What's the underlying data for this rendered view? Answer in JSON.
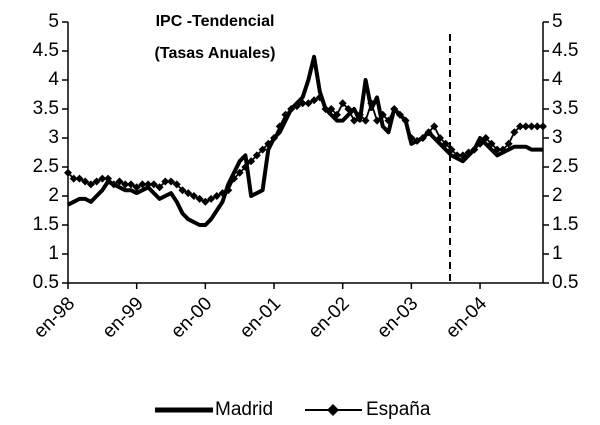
{
  "chart_data": {
    "type": "line",
    "title": "IPC -Tendencial",
    "subtitle": "(Tasas Anuales)",
    "categories": [
      "en-98",
      null,
      null,
      null,
      null,
      null,
      null,
      null,
      null,
      null,
      null,
      null,
      "en-99",
      null,
      null,
      null,
      null,
      null,
      null,
      null,
      null,
      null,
      null,
      null,
      "en-00",
      null,
      null,
      null,
      null,
      null,
      null,
      null,
      null,
      null,
      null,
      null,
      "en-01",
      null,
      null,
      null,
      null,
      null,
      null,
      null,
      null,
      null,
      null,
      null,
      "en-02",
      null,
      null,
      null,
      null,
      null,
      null,
      null,
      null,
      null,
      null,
      null,
      "en-03",
      null,
      null,
      null,
      null,
      null,
      null,
      null,
      null,
      null,
      null,
      null,
      "en-04",
      null,
      null,
      null,
      null,
      null,
      null,
      null,
      null,
      null,
      null,
      null
    ],
    "series": [
      {
        "name": "Madrid",
        "color": "#000000",
        "values": [
          1.85,
          1.9,
          1.95,
          1.95,
          1.9,
          2.0,
          2.1,
          2.25,
          2.2,
          2.15,
          2.1,
          2.1,
          2.05,
          2.1,
          2.15,
          2.05,
          1.95,
          2.0,
          2.05,
          1.9,
          1.7,
          1.6,
          1.55,
          1.5,
          1.5,
          1.6,
          1.75,
          1.9,
          2.2,
          2.4,
          2.6,
          2.7,
          2.0,
          2.05,
          2.1,
          2.8,
          3.0,
          3.1,
          3.3,
          3.5,
          3.6,
          3.7,
          4.0,
          4.4,
          3.8,
          3.5,
          3.4,
          3.3,
          3.3,
          3.4,
          3.5,
          3.3,
          4.0,
          3.5,
          3.7,
          3.2,
          3.1,
          3.5,
          3.4,
          3.3,
          2.9,
          2.95,
          3.0,
          3.1,
          3.0,
          2.9,
          2.8,
          2.7,
          2.65,
          2.6,
          2.7,
          2.8,
          3.0,
          2.9,
          2.8,
          2.7,
          2.75,
          2.8,
          2.85,
          2.85,
          2.85,
          2.8,
          2.8,
          2.8
        ]
      },
      {
        "name": "España",
        "color": "#000000",
        "values": [
          2.4,
          2.3,
          2.3,
          2.25,
          2.2,
          2.25,
          2.3,
          2.3,
          2.2,
          2.25,
          2.2,
          2.2,
          2.15,
          2.2,
          2.2,
          2.2,
          2.15,
          2.25,
          2.25,
          2.2,
          2.1,
          2.05,
          2.0,
          1.95,
          1.9,
          1.95,
          2.0,
          2.05,
          2.1,
          2.3,
          2.4,
          2.5,
          2.6,
          2.7,
          2.8,
          2.9,
          3.0,
          3.2,
          3.4,
          3.5,
          3.55,
          3.6,
          3.6,
          3.65,
          3.7,
          3.5,
          3.5,
          3.4,
          3.6,
          3.5,
          3.3,
          3.4,
          3.3,
          3.6,
          3.3,
          3.4,
          3.3,
          3.5,
          3.4,
          3.3,
          3.0,
          2.95,
          3.0,
          3.1,
          3.2,
          3.0,
          2.9,
          2.8,
          2.7,
          2.7,
          2.75,
          2.8,
          2.9,
          3.0,
          2.9,
          2.8,
          2.8,
          2.9,
          3.1,
          3.2,
          3.2,
          3.2,
          3.2,
          3.2
        ]
      }
    ],
    "ylim": [
      0.5,
      5
    ],
    "yticks": [
      0.5,
      1,
      1.5,
      2,
      2.5,
      3,
      3.5,
      4,
      4.5,
      5
    ],
    "y2lim": [
      0.5,
      5
    ],
    "y2ticks": [
      0.5,
      1,
      1.5,
      2,
      2.5,
      3,
      3.5,
      4,
      4.5,
      5
    ],
    "grid": false
  }
}
